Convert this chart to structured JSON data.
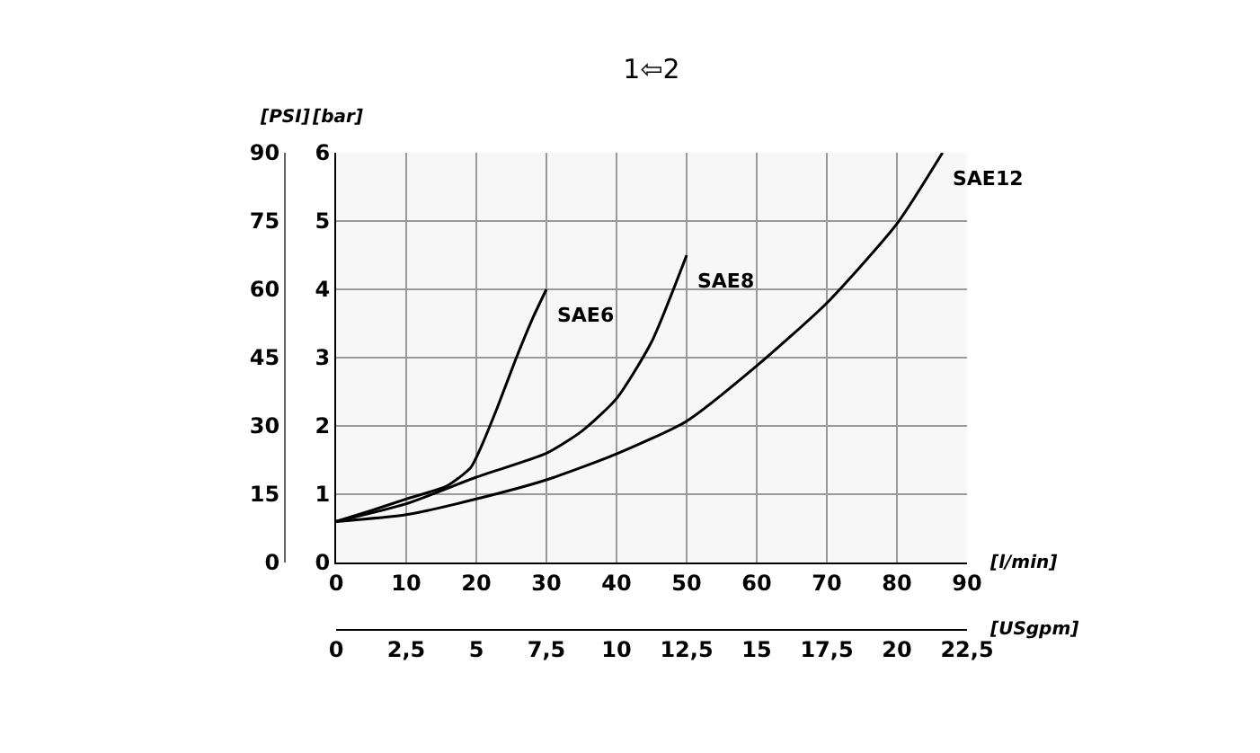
{
  "chart_data": {
    "type": "line",
    "title": "1⇦2",
    "xlabel": "[l/min]",
    "ylabel": "[bar]",
    "y2label": "[PSI]",
    "x2label": "[USgpm]",
    "xlim": [
      0,
      90
    ],
    "xticks": [
      0,
      10,
      20,
      30,
      40,
      50,
      60,
      70,
      80,
      90
    ],
    "ylim": [
      0,
      6
    ],
    "yticks": [
      0,
      1,
      2,
      3,
      4,
      5,
      6
    ],
    "y2lim": [
      0,
      90
    ],
    "y2ticks": [
      0,
      15,
      30,
      45,
      60,
      75,
      90
    ],
    "x2lim": [
      0,
      22.5
    ],
    "x2ticks": [
      0,
      {
        "value": 2.5,
        "label": "2,5"
      },
      5,
      {
        "value": 7.5,
        "label": "7,5"
      },
      10,
      {
        "value": 12.5,
        "label": "12,5"
      },
      15,
      {
        "value": 17.5,
        "label": "17,5"
      },
      20,
      {
        "value": 22.5,
        "label": "22,5"
      }
    ],
    "grid": true,
    "legend": false,
    "marker": "none",
    "line_style": "solid",
    "series": [
      {
        "name": "SAE6",
        "color": "#000000",
        "x": [
          0,
          5,
          10,
          15.8,
          19.2,
          20.5,
          23,
          25.6,
          28.1,
          30
        ],
        "values": [
          0.6,
          0.76,
          0.93,
          1.12,
          1.39,
          1.65,
          2.27,
          2.97,
          3.59,
          4.0
        ]
      },
      {
        "name": "SAE8",
        "color": "#000000",
        "x": [
          0,
          10,
          20,
          30,
          35,
          40,
          45,
          50
        ],
        "values": [
          0.6,
          0.86,
          1.25,
          1.6,
          1.92,
          2.4,
          3.23,
          4.5
        ]
      },
      {
        "name": "SAE12",
        "color": "#000000",
        "x": [
          0,
          10,
          20,
          30,
          40,
          50,
          60,
          70,
          80,
          86.5
        ],
        "values": [
          0.6,
          0.7,
          0.93,
          1.21,
          1.59,
          2.07,
          2.88,
          3.8,
          4.96,
          6.0
        ]
      }
    ]
  }
}
